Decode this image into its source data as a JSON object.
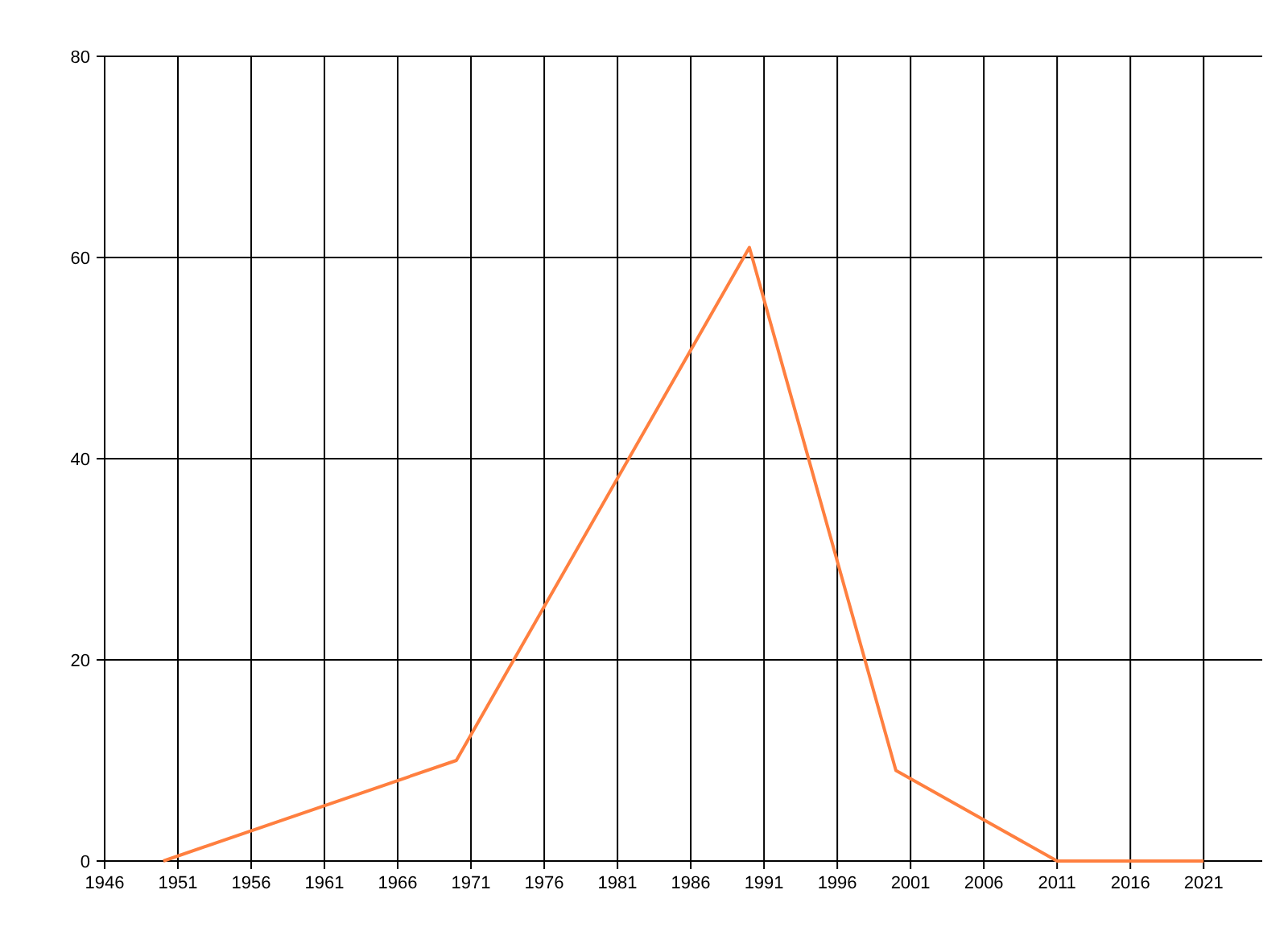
{
  "chart_data": {
    "type": "line",
    "x": [
      1950,
      1970,
      1990,
      2000,
      2011,
      2015,
      2021
    ],
    "series": [
      {
        "color": "#ff7f3f",
        "values": [
          0,
          10,
          61,
          9,
          0,
          0,
          0
        ]
      }
    ],
    "xlim": [
      1946,
      2025
    ],
    "xticks": [
      1946,
      1951,
      1956,
      1961,
      1966,
      1971,
      1976,
      1981,
      1986,
      1991,
      1996,
      2001,
      2006,
      2011,
      2016,
      2021
    ],
    "ylim": [
      0,
      80
    ],
    "yticks": [
      0,
      20,
      40,
      60,
      80
    ],
    "grid": true,
    "line_style": "solid"
  }
}
